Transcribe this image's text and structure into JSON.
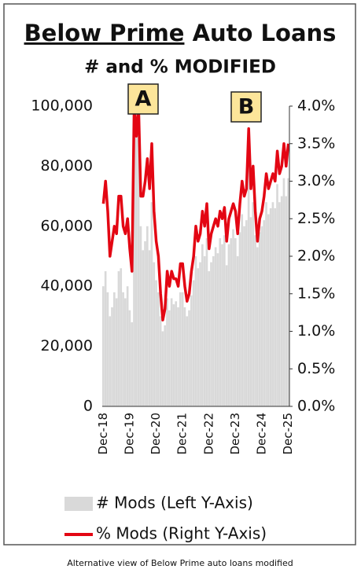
{
  "chart_data": {
    "type": "combo",
    "title": [
      "Below Prime",
      "Auto Loans"
    ],
    "subtitle": "# and % MODIFIED",
    "annotations": [
      "A",
      "B"
    ],
    "categories": [
      "Dec-18",
      null,
      null,
      null,
      null,
      null,
      null,
      null,
      null,
      null,
      null,
      null,
      "Dec-19",
      null,
      null,
      null,
      null,
      null,
      null,
      null,
      null,
      null,
      null,
      null,
      "Dec-20",
      null,
      null,
      null,
      null,
      null,
      null,
      null,
      null,
      null,
      null,
      null,
      "Dec-21",
      null,
      null,
      null,
      null,
      null,
      null,
      null,
      null,
      null,
      null,
      null,
      "Dec-22",
      null,
      null,
      null,
      null,
      null,
      null,
      null,
      null,
      null,
      null,
      null,
      "Dec-23",
      null,
      null,
      null,
      null,
      null,
      null,
      null,
      null,
      null,
      null,
      null,
      "Dec-24",
      null,
      null,
      null,
      null,
      null,
      null,
      null,
      null,
      null,
      null,
      null,
      "Dec-25"
    ],
    "series": [
      {
        "name": "# Mods (Left Y-Axis)",
        "type": "bar",
        "color": "#d9d9d9",
        "values": [
          40000,
          45000,
          38000,
          30000,
          33000,
          38000,
          36000,
          45000,
          46000,
          38000,
          36000,
          40000,
          32000,
          28000,
          100000,
          90000,
          100000,
          60000,
          52000,
          55000,
          60000,
          52000,
          68000,
          48000,
          42000,
          38000,
          30000,
          25000,
          27000,
          36000,
          32000,
          36000,
          34000,
          35000,
          33000,
          38000,
          38000,
          33000,
          30000,
          32000,
          37000,
          42000,
          50000,
          46000,
          48000,
          54000,
          50000,
          56000,
          45000,
          48000,
          50000,
          53000,
          51000,
          56000,
          54000,
          57000,
          47000,
          54000,
          56000,
          59000,
          56000,
          50000,
          58000,
          64000,
          60000,
          62000,
          80000,
          63000,
          68000,
          57000,
          53000,
          58000,
          60000,
          62000,
          68000,
          64000,
          66000,
          68000,
          66000,
          74000,
          68000,
          70000,
          76000,
          70000,
          76000
        ]
      },
      {
        "name": "% Mods (Right Y-Axis)",
        "type": "line",
        "axis": "y2",
        "color": "#e30613",
        "values": [
          2.7,
          3.0,
          2.6,
          2.0,
          2.2,
          2.4,
          2.3,
          2.8,
          2.8,
          2.4,
          2.3,
          2.5,
          2.1,
          1.8,
          4.0,
          3.6,
          4.0,
          2.8,
          2.8,
          3.0,
          3.3,
          2.9,
          3.5,
          2.6,
          2.2,
          2.0,
          1.5,
          1.15,
          1.3,
          1.8,
          1.6,
          1.8,
          1.7,
          1.7,
          1.6,
          1.9,
          1.9,
          1.6,
          1.4,
          1.5,
          1.8,
          2.0,
          2.4,
          2.2,
          2.3,
          2.6,
          2.4,
          2.7,
          2.1,
          2.3,
          2.4,
          2.5,
          2.4,
          2.6,
          2.5,
          2.65,
          2.2,
          2.5,
          2.6,
          2.7,
          2.6,
          2.3,
          2.7,
          3.0,
          2.8,
          2.9,
          3.7,
          2.9,
          3.2,
          2.6,
          2.2,
          2.5,
          2.6,
          2.8,
          3.1,
          2.9,
          3.0,
          3.1,
          3.0,
          3.4,
          3.1,
          3.2,
          3.5,
          3.2,
          3.5
        ]
      }
    ],
    "ylim": [
      0,
      100000
    ],
    "yticks": [
      0,
      {
        "value": 20000,
        "label": "20,000"
      },
      {
        "value": 40000,
        "label": "40,000"
      },
      {
        "value": 60000,
        "label": "60,000"
      },
      {
        "value": 80000,
        "label": "80,000"
      },
      {
        "value": 100000,
        "label": "100,000"
      }
    ],
    "y2lim": [
      0,
      4
    ],
    "y2ticks": [
      {
        "value": 0,
        "label": "0.0%"
      },
      {
        "value": 0.5,
        "label": "0.5%"
      },
      {
        "value": 1,
        "label": "1.0%"
      },
      {
        "value": 1.5,
        "label": "1.5%"
      },
      {
        "value": 2,
        "label": "2.0%"
      },
      {
        "value": 2.5,
        "label": "2.5%"
      },
      {
        "value": 3,
        "label": "3.0%"
      },
      {
        "value": 3.5,
        "label": "3.5%"
      },
      {
        "value": 4,
        "label": "4.0%"
      }
    ],
    "grid": false
  },
  "caption": "Alternative view of Below Prime auto loans modified"
}
